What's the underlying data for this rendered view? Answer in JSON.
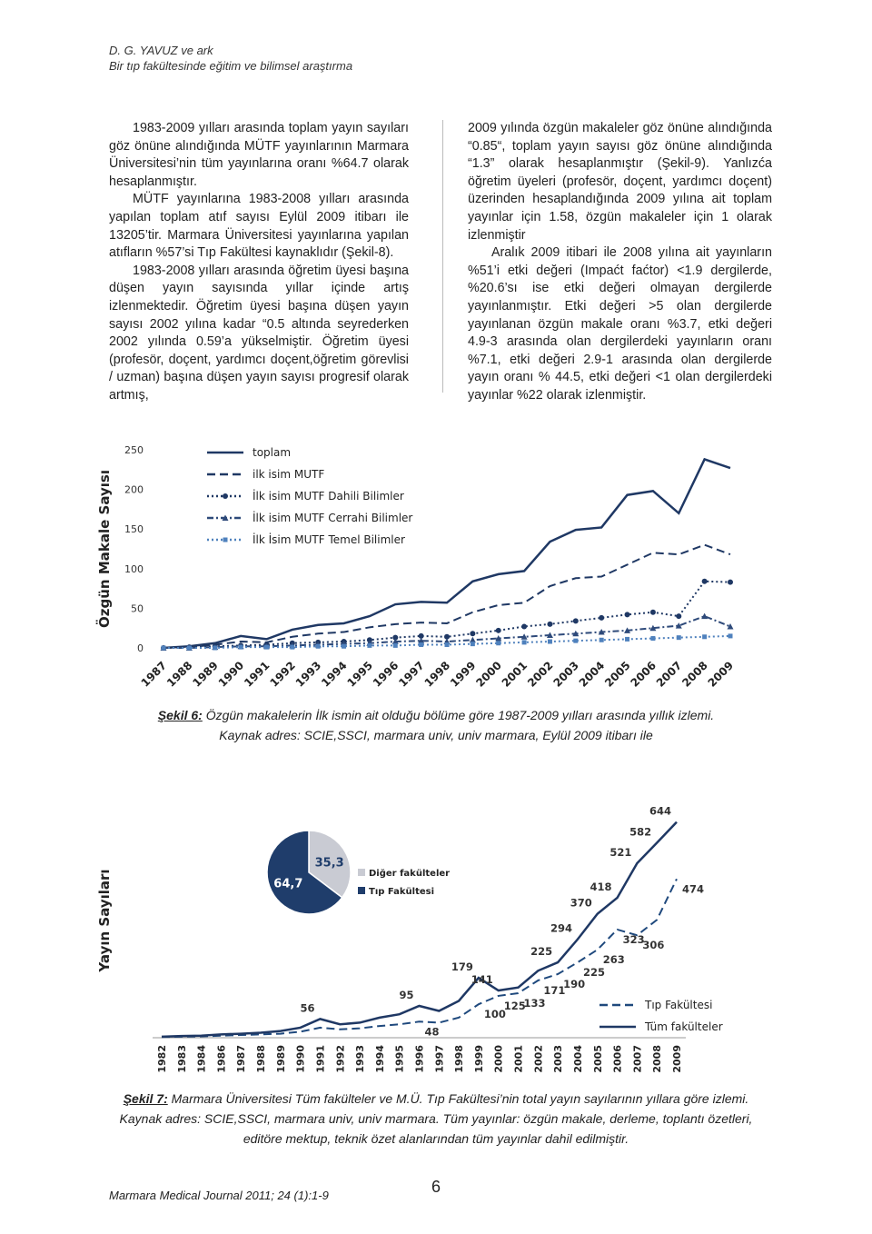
{
  "header": {
    "author": "D. G. YAVUZ ve ark",
    "title": "Bir tıp fakültesinde eğitim ve bilimsel araştırma"
  },
  "left_column": [
    "1983-2009 yılları arasında toplam yayın sayıları göz önüne alındığında MÜTF yayınlarının Marmara Üniversitesi’nin tüm yayınlarına oranı %64.7 olarak hesaplanmıştır.",
    "MÜTF yayınlarına 1983-2008 yılları arasında yapılan toplam atıf sayısı Eylül 2009 itibarı ile 13205’tir. Marmara Üniversitesi yayınlarına yapılan atıfların %57’si Tıp Fakültesi kaynaklıdır (Şekil-8).",
    "1983-2008 yılları arasında öğretim üyesi başına düşen yayın sayısında yıllar içinde artış izlenmektedir. Öğretim üyesi başına düşen yayın sayısı 2002 yılına kadar “0.5 altında seyrederken 2002 yılında 0.59’a yükselmiştir. Öğretim üyesi (profesör, doçent, yardımcı doçent,öğretim görevlisi / uzman) başına düşen yayın sayısı progresif olarak artmış,"
  ],
  "right_column": [
    "2009 yılında özgün makaleler göz önüne alındığında “0.85“, toplam yayın sayısı göz önüne alındığında “1.3” olarak hesaplanmıştır (Şekil-9). Yanlızća öğretim üyeleri (profesör, doçent, yardımcı doçent) üzerinden hesaplandığında 2009 yılına ait toplam yayınlar için 1.58, özgün makaleler için 1 olarak izlenmiştir",
    "Aralık 2009 itibari ile 2008 yılına ait yayınların %51’i etki değeri (Impaćt faćtor) <1.9 dergilerde, %20.6’sı ise etki değeri olmayan dergilerde yayınlanmıştır. Etki değeri >5 olan dergilerde yayınlanan özgün makale oranı %3.7, etki değeri 4.9-3 arasında olan dergilerdeki yayınların oranı %7.1, etki değeri 2.9-1 arasında olan dergilerde yayın oranı % 44.5, etki değeri <1 olan dergilerdeki yayınlar %22 olarak izlenmiştir."
  ],
  "chart_data": [
    {
      "type": "line",
      "ylabel": "Özgün Makale Sayısı",
      "categories": [
        "1987",
        "1988",
        "1989",
        "1990",
        "1991",
        "1992",
        "1993",
        "1994",
        "1995",
        "1996",
        "1997",
        "1998",
        "1999",
        "2000",
        "2001",
        "2002",
        "2003",
        "2004",
        "2005",
        "2006",
        "2007",
        "2008",
        "2009"
      ],
      "ylim": [
        0,
        250
      ],
      "yticks": [
        0,
        50,
        100,
        150,
        200,
        250
      ],
      "series": [
        {
          "name": "toplam",
          "color": "#1f3864",
          "line_style": "solid",
          "values": [
            0,
            2,
            6,
            15,
            11,
            23,
            29,
            31,
            40,
            55,
            58,
            57,
            84,
            93,
            97,
            134,
            149,
            152,
            193,
            198,
            170,
            238,
            227
          ]
        },
        {
          "name": "ilk isim MUTF",
          "color": "#1f3864",
          "line_style": "dashed",
          "values": [
            0,
            1,
            4,
            8,
            7,
            14,
            18,
            20,
            26,
            30,
            32,
            31,
            45,
            54,
            57,
            78,
            88,
            90,
            105,
            120,
            118,
            130,
            118
          ]
        },
        {
          "name": "İlk isim  MUTF Dahili Bilimler",
          "color": "#1f3864",
          "line_style": "dotted",
          "marker": "circle",
          "values": [
            0,
            1,
            2,
            3,
            4,
            6,
            7,
            8,
            10,
            13,
            15,
            14,
            18,
            22,
            27,
            30,
            34,
            38,
            42,
            45,
            40,
            84,
            83
          ]
        },
        {
          "name": "İlk isim  MUTF Cerrahi Bilimler",
          "color": "#2e4a7a",
          "line_style": "dashdot",
          "marker": "triangle",
          "values": [
            0,
            0,
            1,
            2,
            2,
            3,
            4,
            5,
            6,
            8,
            9,
            8,
            10,
            12,
            14,
            16,
            18,
            20,
            22,
            25,
            28,
            40,
            27
          ]
        },
        {
          "name": "İlk İsim MUTF Temel Bilimler",
          "color": "#4f81bd",
          "line_style": "dotted",
          "marker": "square",
          "values": [
            0,
            0,
            0,
            1,
            1,
            1,
            2,
            2,
            3,
            3,
            4,
            4,
            5,
            6,
            7,
            8,
            9,
            10,
            11,
            12,
            13,
            14,
            15
          ]
        }
      ],
      "caption_label": "Şekil 6:",
      "caption": "Özgün makalelerin İlk ismin ait olduğu bölüme göre 1987-2009 yılları arasında yıllık izlemi.",
      "source": "Kaynak adres: SCIE,SSCI, marmara univ, univ marmara, Eylül 2009 itibarı ile"
    },
    {
      "type": "line",
      "ylabel": "Yayın Sayıları",
      "categories": [
        "1982",
        "1983",
        "1984",
        "1986",
        "1987",
        "1988",
        "1989",
        "1990",
        "1991",
        "1992",
        "1993",
        "1994",
        "1995",
        "1996",
        "1997",
        "1998",
        "1999",
        "2000",
        "2001",
        "2002",
        "2003",
        "2004",
        "2005",
        "2006",
        "2007",
        "2008",
        "2009"
      ],
      "ylim": [
        0,
        700
      ],
      "series": [
        {
          "name": "Tıp Fakültesi",
          "color": "#1f497d",
          "line_style": "dashed",
          "label_side": "below",
          "values": [
            2,
            3,
            4,
            6,
            8,
            10,
            12,
            18,
            30,
            25,
            28,
            35,
            40,
            48,
            45,
            60,
            100,
            125,
            133,
            171,
            190,
            225,
            263,
            323,
            306,
            352,
            474
          ],
          "value_labels": [
            null,
            null,
            null,
            null,
            null,
            null,
            null,
            null,
            null,
            null,
            null,
            null,
            null,
            "48",
            null,
            null,
            "100",
            "125",
            "133",
            "171",
            "190",
            "225",
            "263",
            "323",
            "306",
            null,
            "474"
          ]
        },
        {
          "name": "Tüm fakülteler",
          "color": "#1f3864",
          "line_style": "solid",
          "label_side": "above",
          "values": [
            3,
            5,
            6,
            10,
            12,
            15,
            20,
            30,
            56,
            40,
            45,
            60,
            70,
            95,
            80,
            110,
            179,
            141,
            150,
            200,
            225,
            294,
            370,
            418,
            521,
            582,
            644
          ],
          "value_labels": [
            null,
            null,
            null,
            null,
            null,
            null,
            null,
            null,
            "56",
            null,
            null,
            null,
            null,
            "95",
            null,
            null,
            "179",
            "141",
            null,
            null,
            "225",
            "294",
            "370",
            "418",
            "521",
            "582",
            "644"
          ]
        }
      ],
      "caption_label": "Şekil 7:",
      "caption": "Marmara Üniversitesi Tüm fakülteler ve M.Ü. Tıp Fakültesi’nin total yayın sayılarının yıllara göre izlemi. Kaynak adres: SCIE,SSCI, marmara univ, univ marmara. Tüm yayınlar: özgün makale, derleme, toplantı özetleri, editöre mektup, teknik özet  alanlarından tüm yayınlar dahil edilmiştir."
    },
    {
      "type": "pie",
      "labels": [
        "Diğer fakülteler",
        "Tıp Fakültesi"
      ],
      "values": [
        35.3,
        64.7
      ],
      "value_labels": [
        "35,3",
        "64,7"
      ],
      "colors": [
        "#c9cbd3",
        "#1f3d6b"
      ]
    }
  ],
  "footer": {
    "journal": "Marmara Medical Journal 2011; 24 (1):1-9",
    "page": "6"
  }
}
